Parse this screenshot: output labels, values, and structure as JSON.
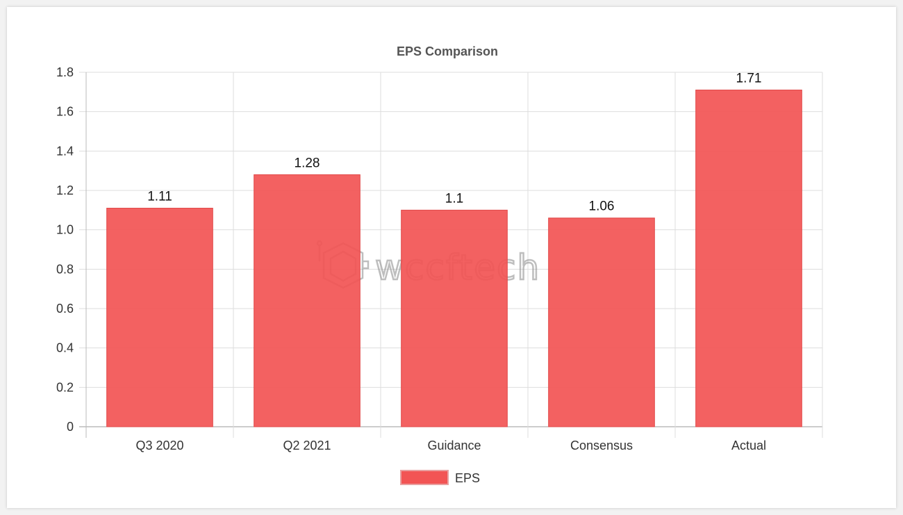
{
  "chart_data": {
    "type": "bar",
    "title": "EPS Comparison",
    "xlabel": "",
    "ylabel": "",
    "categories": [
      "Q3 2020",
      "Q2 2021",
      "Guidance",
      "Consensus",
      "Actual"
    ],
    "series": [
      {
        "name": "EPS",
        "values": [
          1.11,
          1.28,
          1.1,
          1.06,
          1.71
        ],
        "color": "#f25454"
      }
    ],
    "ylim": [
      0,
      1.8
    ],
    "yticks": [
      "0",
      "0.2",
      "0.4",
      "0.6",
      "0.8",
      "1.0",
      "1.2",
      "1.4",
      "1.6",
      "1.8"
    ],
    "grid": true,
    "legend_position": "bottom",
    "data_labels": true
  },
  "watermark": {
    "text": "wccftech",
    "icon": "wccftech-logo-icon"
  }
}
